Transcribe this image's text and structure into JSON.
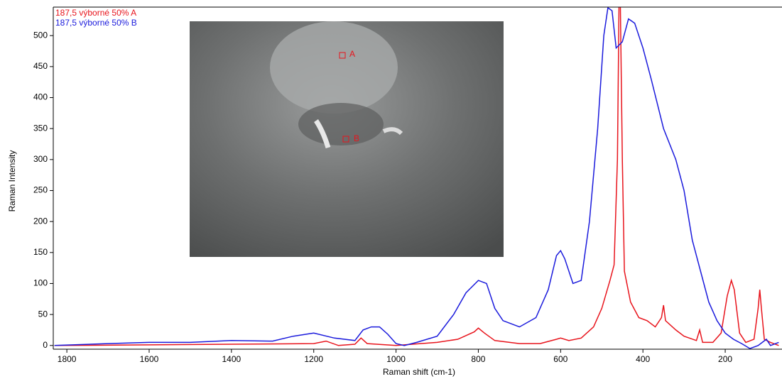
{
  "chart_data": {
    "type": "line",
    "xlabel": "Raman shift (cm-1)",
    "ylabel": "Raman Intensity",
    "xlim": [
      1833,
      62
    ],
    "ylim": [
      -6,
      546
    ],
    "xticks": [
      1800,
      1600,
      1400,
      1200,
      1000,
      800,
      600,
      400,
      200
    ],
    "yticks": [
      0,
      50,
      100,
      150,
      200,
      250,
      300,
      350,
      400,
      450,
      500
    ],
    "annotations": [
      "A",
      "B"
    ],
    "series": [
      {
        "name": "187,5 výborné 50% A",
        "color": "#e8141c",
        "x": [
          1830,
          1600,
          1400,
          1200,
          1170,
          1140,
          1100,
          1085,
          1070,
          1000,
          900,
          850,
          810,
          800,
          785,
          760,
          700,
          650,
          610,
          600,
          580,
          550,
          520,
          500,
          480,
          470,
          462,
          458,
          455,
          450,
          445,
          430,
          410,
          390,
          370,
          355,
          350,
          345,
          320,
          300,
          270,
          262,
          255,
          230,
          210,
          195,
          185,
          178,
          165,
          150,
          130,
          120,
          116,
          112,
          105,
          90,
          70
        ],
        "values": [
          0,
          1,
          2,
          3,
          7,
          0,
          2,
          12,
          3,
          0,
          5,
          10,
          22,
          28,
          20,
          8,
          3,
          3,
          10,
          12,
          8,
          12,
          30,
          60,
          105,
          130,
          300,
          560,
          560,
          300,
          120,
          70,
          45,
          40,
          30,
          45,
          65,
          40,
          25,
          15,
          8,
          25,
          5,
          5,
          20,
          80,
          105,
          90,
          20,
          5,
          10,
          60,
          90,
          60,
          10,
          5,
          0
        ]
      },
      {
        "name": "187,5 výborné 50% B",
        "color": "#1a1adc",
        "x": [
          1830,
          1700,
          1600,
          1500,
          1400,
          1300,
          1250,
          1200,
          1150,
          1100,
          1080,
          1060,
          1040,
          1020,
          1000,
          980,
          950,
          900,
          860,
          830,
          800,
          780,
          760,
          740,
          700,
          660,
          630,
          610,
          600,
          590,
          570,
          550,
          530,
          510,
          495,
          485,
          475,
          465,
          450,
          435,
          420,
          400,
          380,
          350,
          320,
          300,
          280,
          260,
          240,
          220,
          200,
          180,
          160,
          140,
          120,
          100,
          90,
          70
        ],
        "values": [
          0,
          3,
          5,
          5,
          8,
          7,
          15,
          20,
          12,
          8,
          25,
          30,
          30,
          18,
          3,
          0,
          5,
          15,
          50,
          85,
          105,
          100,
          60,
          40,
          30,
          45,
          90,
          145,
          153,
          140,
          100,
          105,
          200,
          350,
          500,
          545,
          540,
          480,
          490,
          527,
          520,
          480,
          430,
          350,
          300,
          250,
          170,
          120,
          70,
          40,
          20,
          10,
          3,
          -5,
          0,
          10,
          0,
          5
        ]
      }
    ]
  }
}
